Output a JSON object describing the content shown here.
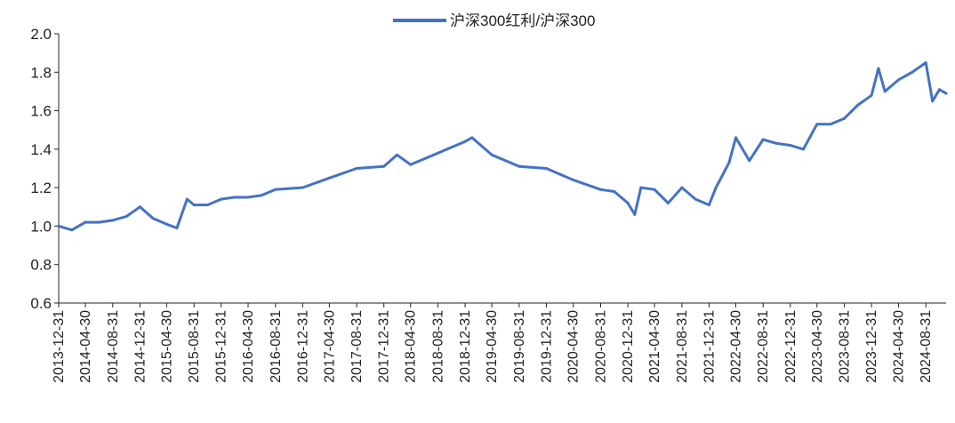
{
  "chart_data": {
    "type": "line",
    "title": "",
    "xlabel": "",
    "ylabel": "",
    "ylim": [
      0.6,
      2.0
    ],
    "y_ticks": [
      "2.0",
      "1.8",
      "1.6",
      "1.4",
      "1.2",
      "1.0",
      "0.8",
      "0.6"
    ],
    "x_range": [
      "2013-12-31",
      "2024-11-30"
    ],
    "x_ticks": [
      "2013-12-31",
      "2014-04-30",
      "2014-08-31",
      "2014-12-31",
      "2015-04-30",
      "2015-08-31",
      "2015-12-31",
      "2016-04-30",
      "2016-08-31",
      "2016-12-31",
      "2017-04-30",
      "2017-08-31",
      "2017-12-31",
      "2018-04-30",
      "2018-08-31",
      "2018-12-31",
      "2019-04-30",
      "2019-08-31",
      "2019-12-31",
      "2020-04-30",
      "2020-08-31",
      "2020-12-31",
      "2021-04-30",
      "2021-08-31",
      "2021-12-31",
      "2022-04-30",
      "2022-08-31",
      "2022-12-31",
      "2023-04-30",
      "2023-08-31",
      "2023-12-31",
      "2024-04-30",
      "2024-08-31"
    ],
    "legend_position": "top-center",
    "grid": false,
    "series": [
      {
        "name": "沪深300红利/沪深300",
        "color": "#4472C4",
        "points": [
          [
            "2013-12-31",
            1.0
          ],
          [
            "2014-02-28",
            0.98
          ],
          [
            "2014-04-30",
            1.02
          ],
          [
            "2014-06-30",
            1.02
          ],
          [
            "2014-08-31",
            1.03
          ],
          [
            "2014-10-31",
            1.05
          ],
          [
            "2014-12-31",
            1.1
          ],
          [
            "2015-02-28",
            1.04
          ],
          [
            "2015-04-30",
            1.01
          ],
          [
            "2015-06-15",
            0.99
          ],
          [
            "2015-07-31",
            1.14
          ],
          [
            "2015-08-31",
            1.11
          ],
          [
            "2015-10-31",
            1.11
          ],
          [
            "2015-12-31",
            1.14
          ],
          [
            "2016-02-29",
            1.15
          ],
          [
            "2016-04-30",
            1.15
          ],
          [
            "2016-06-30",
            1.16
          ],
          [
            "2016-08-31",
            1.19
          ],
          [
            "2016-12-31",
            1.2
          ],
          [
            "2017-04-30",
            1.25
          ],
          [
            "2017-08-31",
            1.3
          ],
          [
            "2017-12-31",
            1.31
          ],
          [
            "2018-02-28",
            1.37
          ],
          [
            "2018-04-30",
            1.32
          ],
          [
            "2018-08-31",
            1.38
          ],
          [
            "2018-12-31",
            1.44
          ],
          [
            "2019-01-31",
            1.46
          ],
          [
            "2019-04-30",
            1.37
          ],
          [
            "2019-08-31",
            1.31
          ],
          [
            "2019-12-31",
            1.3
          ],
          [
            "2020-02-29",
            1.27
          ],
          [
            "2020-04-30",
            1.24
          ],
          [
            "2020-08-31",
            1.19
          ],
          [
            "2020-10-31",
            1.18
          ],
          [
            "2020-12-31",
            1.12
          ],
          [
            "2021-01-31",
            1.06
          ],
          [
            "2021-02-28",
            1.2
          ],
          [
            "2021-04-30",
            1.19
          ],
          [
            "2021-06-30",
            1.12
          ],
          [
            "2021-08-31",
            1.2
          ],
          [
            "2021-10-31",
            1.14
          ],
          [
            "2021-12-31",
            1.11
          ],
          [
            "2022-01-31",
            1.2
          ],
          [
            "2022-03-31",
            1.33
          ],
          [
            "2022-04-30",
            1.46
          ],
          [
            "2022-06-30",
            1.34
          ],
          [
            "2022-08-31",
            1.45
          ],
          [
            "2022-10-31",
            1.43
          ],
          [
            "2022-12-31",
            1.42
          ],
          [
            "2023-02-28",
            1.4
          ],
          [
            "2023-04-30",
            1.53
          ],
          [
            "2023-06-30",
            1.53
          ],
          [
            "2023-08-31",
            1.56
          ],
          [
            "2023-10-31",
            1.63
          ],
          [
            "2023-12-31",
            1.68
          ],
          [
            "2024-01-31",
            1.82
          ],
          [
            "2024-02-29",
            1.7
          ],
          [
            "2024-04-30",
            1.76
          ],
          [
            "2024-06-30",
            1.8
          ],
          [
            "2024-08-31",
            1.85
          ],
          [
            "2024-09-30",
            1.65
          ],
          [
            "2024-10-31",
            1.71
          ],
          [
            "2024-11-30",
            1.69
          ]
        ]
      }
    ]
  }
}
